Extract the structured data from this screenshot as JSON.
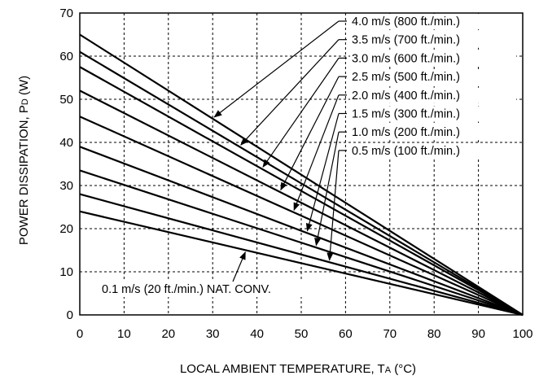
{
  "chart_data": {
    "type": "line",
    "title": "",
    "xlabel": "LOCAL AMBIENT TEMPERATURE, T",
    "xlabel_sub": "A",
    "xlabel_unit": " (°C)",
    "ylabel": "POWER DISSIPATION, P",
    "ylabel_sub": "D",
    "ylabel_unit": " (W)",
    "xlim": [
      0,
      100
    ],
    "ylim": [
      0,
      70
    ],
    "x_ticks": [
      0,
      10,
      20,
      30,
      40,
      50,
      60,
      70,
      80,
      90,
      100
    ],
    "y_ticks": [
      0,
      10,
      20,
      30,
      40,
      50,
      60,
      70
    ],
    "grid": true,
    "series": [
      {
        "name": "4.0 m/s (800 ft./min.)",
        "x": [
          0,
          100
        ],
        "y": [
          65,
          0
        ]
      },
      {
        "name": "3.5 m/s (700 ft./min.)",
        "x": [
          0,
          100
        ],
        "y": [
          61,
          0
        ]
      },
      {
        "name": "3.0 m/s (600 ft./min.)",
        "x": [
          0,
          100
        ],
        "y": [
          57.5,
          0
        ]
      },
      {
        "name": "2.5 m/s (500 ft./min.)",
        "x": [
          0,
          100
        ],
        "y": [
          52,
          0
        ]
      },
      {
        "name": "2.0 m/s (400 ft./min.)",
        "x": [
          0,
          100
        ],
        "y": [
          46,
          0
        ]
      },
      {
        "name": "1.5 m/s (300 ft./min.)",
        "x": [
          0,
          100
        ],
        "y": [
          39,
          0
        ]
      },
      {
        "name": "1.0 m/s (200 ft./min.)",
        "x": [
          0,
          100
        ],
        "y": [
          33.5,
          0
        ]
      },
      {
        "name": "0.5 m/s (100 ft./min.)",
        "x": [
          0,
          100
        ],
        "y": [
          28,
          0
        ]
      },
      {
        "name": "0.1 m/s (20 ft./min.) NAT. CONV.",
        "x": [
          0,
          100
        ],
        "y": [
          24,
          0
        ]
      }
    ]
  }
}
